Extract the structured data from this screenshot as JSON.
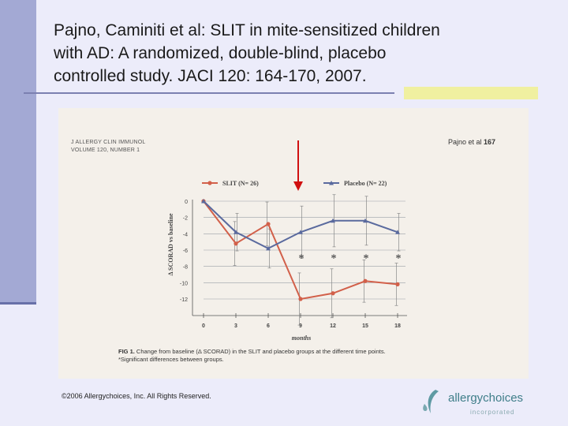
{
  "slide": {
    "title_lines": [
      "Pajno, Caminiti et al:  SLIT in mite-sensitized children",
      "with AD:  A randomized, double-blind, placebo",
      "controlled study.  JACI 120: 164-170, 2007."
    ],
    "copyright": "©2006 Allergychoices, Inc. All Rights Reserved.",
    "logo_word": "allergychoices",
    "logo_sub": "incorporated"
  },
  "figure": {
    "journal_line1": "J ALLERGY CLIN IMMUNOL",
    "journal_line2": "VOLUME 120, NUMBER 1",
    "page_ref_prefix": "Pajno et al",
    "page_ref_number": "167",
    "caption_label": "FIG 1.",
    "caption_text": " Change from baseline (Δ SCORAD) in the SLIT and placebo groups at the different time points.",
    "caption_note": "*Significant differences between groups."
  },
  "chart_data": {
    "type": "line",
    "xlabel": "months",
    "ylabel": "Δ SCORAD vs baseline",
    "x": [
      0,
      3,
      6,
      9,
      12,
      15,
      18
    ],
    "xlim": [
      0,
      18
    ],
    "ylim": [
      -13,
      0
    ],
    "yticks": [
      0,
      -2,
      -4,
      -6,
      -8,
      -10,
      -12
    ],
    "legend_position": "top",
    "significant_points": [
      9,
      12,
      15,
      18
    ],
    "significance_marker": "*",
    "annotation": "red arrow pointing down at 9 months",
    "series": [
      {
        "name": "SLIT (N= 26)",
        "color": "#d2604a",
        "marker": "circle",
        "values": [
          0,
          -5.2,
          -2.8,
          -12,
          -11.3,
          -9.8,
          -10.2
        ],
        "err": [
          0,
          2.7,
          2.7,
          3.2,
          3.0,
          2.6,
          2.6
        ]
      },
      {
        "name": "Placebo (N= 22)",
        "color": "#5a6a9e",
        "marker": "triangle",
        "values": [
          0,
          -3.8,
          -5.8,
          -3.8,
          -2.4,
          -2.4,
          -3.8
        ],
        "err": [
          0,
          2.3,
          2.4,
          3.2,
          3.2,
          3.0,
          2.3
        ]
      }
    ]
  }
}
